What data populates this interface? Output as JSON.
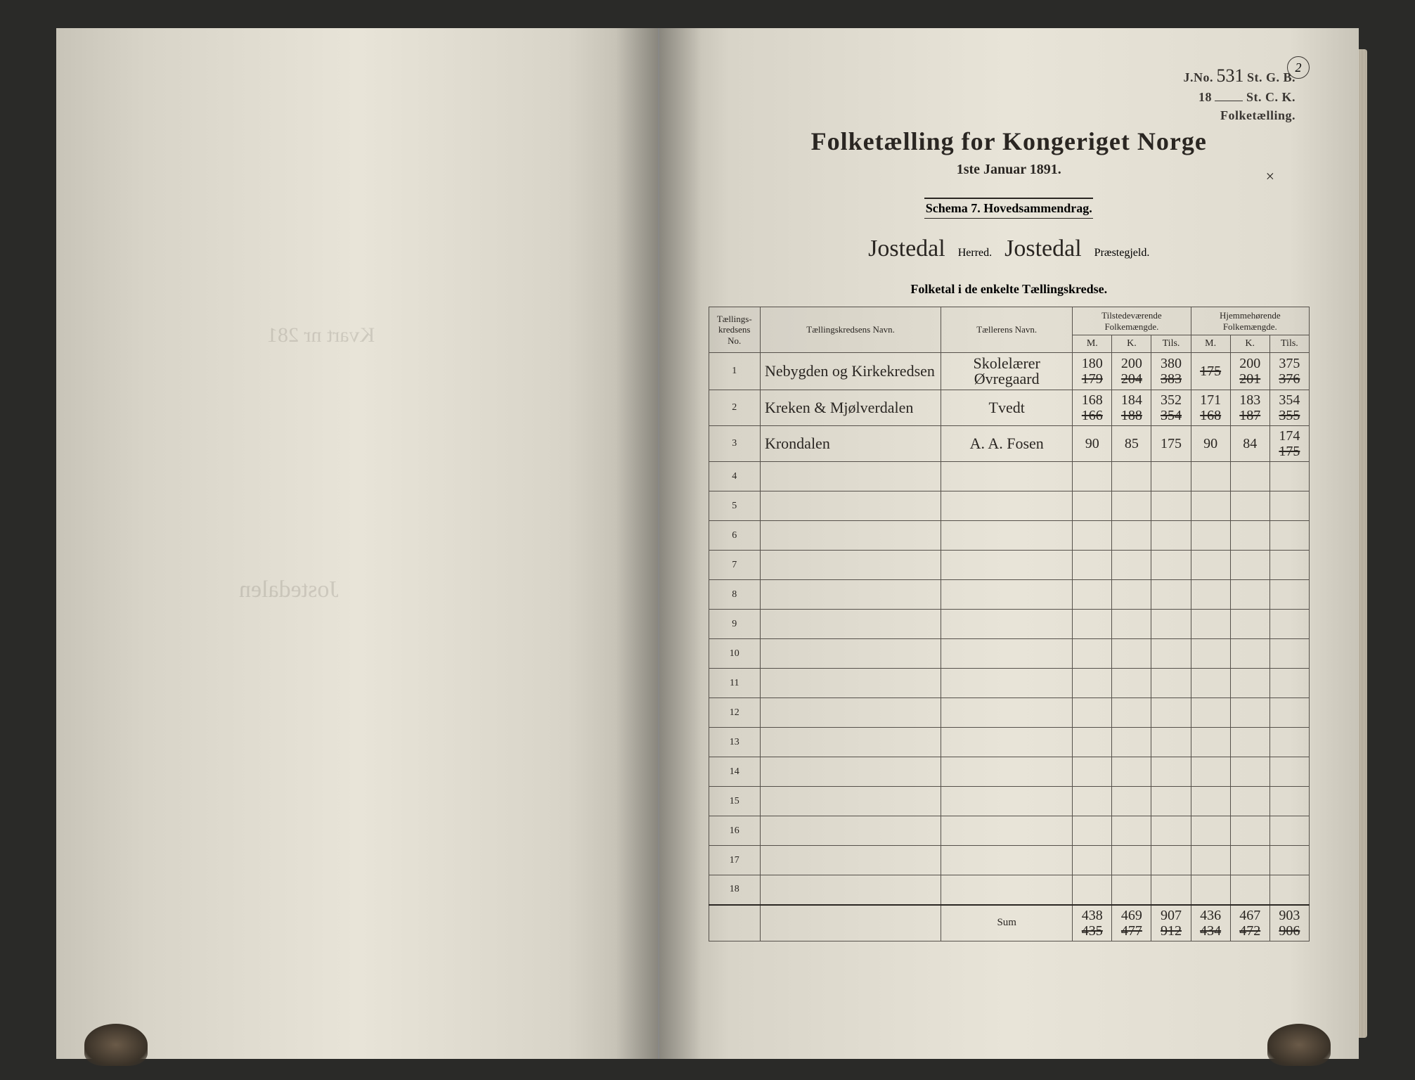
{
  "page_circle": "2",
  "stamp": {
    "line1_prefix": "J.No.",
    "line1_value": "531",
    "line1_suffix": "St. G. B.",
    "line2_prefix": "18",
    "line2_suffix": "St. C. K.",
    "line3": "Folketælling."
  },
  "title": "Folketælling for Kongeriget Norge",
  "subtitle": "1ste Januar 1891.",
  "x_mark": "×",
  "schema": "Schema 7.  Hovedsammendrag.",
  "herred_name": "Jostedal",
  "herred_label": "Herred.",
  "prestegjeld_name": "Jostedal",
  "prestegjeld_label": "Præstegjeld.",
  "section_title": "Folketal i de enkelte Tællingskredse.",
  "headers": {
    "no": "Tællings-\nkredsens No.",
    "kreds": "Tællingskredsens Navn.",
    "teller": "Tællerens Navn.",
    "tilstede": "Tilstedeværende\nFolkemængde.",
    "hjemme": "Hjemmehørende\nFolkemængde.",
    "m": "M.",
    "k": "K.",
    "tils": "Tils."
  },
  "rows": [
    {
      "no": "1",
      "kreds": "Nebygden og Kirkekredsen",
      "teller": "Skolelærer Øvregaard",
      "t_m_top": "180",
      "t_m_bot": "179",
      "t_k_top": "200",
      "t_k_bot": "204",
      "t_t_top": "380",
      "t_t_bot": "383",
      "h_m_top": "",
      "h_m_bot": "175",
      "h_k_top": "200",
      "h_k_bot": "201",
      "h_t_top": "375",
      "h_t_bot": "376"
    },
    {
      "no": "2",
      "kreds": "Kreken & Mjølverdalen",
      "teller": "Tvedt",
      "t_m_top": "168",
      "t_m_bot": "166",
      "t_k_top": "184",
      "t_k_bot": "188",
      "t_t_top": "352",
      "t_t_bot": "354",
      "h_m_top": "171",
      "h_m_bot": "168",
      "h_k_top": "183",
      "h_k_bot": "187",
      "h_t_top": "354",
      "h_t_bot": "355"
    },
    {
      "no": "3",
      "kreds": "Krondalen",
      "teller": "A. A. Fosen",
      "t_m_top": "90",
      "t_m_bot": "",
      "t_k_top": "85",
      "t_k_bot": "",
      "t_t_top": "175",
      "t_t_bot": "",
      "h_m_top": "90",
      "h_m_bot": "",
      "h_k_top": "84",
      "h_k_bot": "",
      "h_t_top": "174",
      "h_t_bot": "175"
    }
  ],
  "empty_start": 4,
  "empty_end": 18,
  "sum": {
    "label": "Sum",
    "t_m_top": "438",
    "t_m_bot": "435",
    "t_k_top": "469",
    "t_k_bot": "477",
    "t_t_top": "907",
    "t_t_bot": "912",
    "h_m_top": "436",
    "h_m_bot": "434",
    "h_k_top": "467",
    "h_k_bot": "472",
    "h_t_top": "903",
    "h_t_bot": "906"
  },
  "ghost_left1": "Kvart nr 281",
  "ghost_left2": "Jostedalen",
  "colors": {
    "ink": "#2a2622",
    "paper": "#e8e4d8",
    "border": "#55504a",
    "bg": "#2a2a28"
  }
}
